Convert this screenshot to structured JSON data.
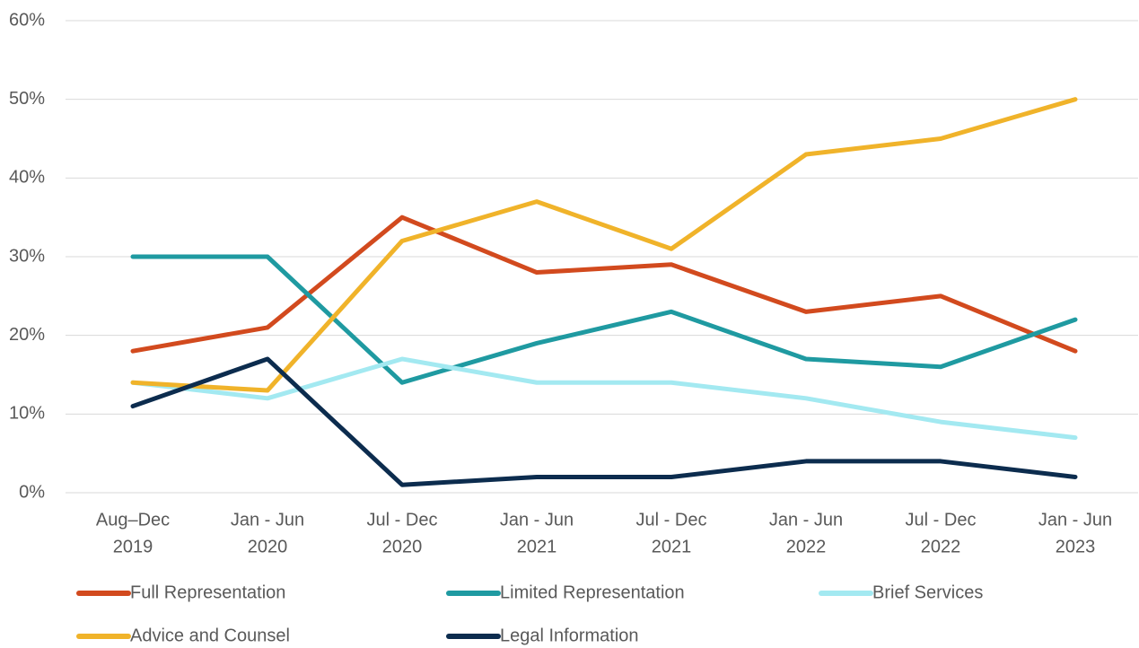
{
  "chart_data": {
    "type": "line",
    "categories": [
      [
        "Aug–Dec",
        "2019"
      ],
      [
        "Jan - Jun",
        "2020"
      ],
      [
        "Jul - Dec",
        "2020"
      ],
      [
        "Jan - Jun",
        "2021"
      ],
      [
        "Jul - Dec",
        "2021"
      ],
      [
        "Jan - Jun",
        "2022"
      ],
      [
        "Jul - Dec",
        "2022"
      ],
      [
        "Jan - Jun",
        "2023"
      ]
    ],
    "series": [
      {
        "name": "Full Representation",
        "color": "#d24a1e",
        "values": [
          18,
          21,
          35,
          28,
          29,
          23,
          25,
          18
        ]
      },
      {
        "name": "Limited Representation",
        "color": "#1f9aa1",
        "values": [
          30,
          30,
          14,
          19,
          23,
          17,
          16,
          22
        ]
      },
      {
        "name": "Brief Services",
        "color": "#a3e9f1",
        "values": [
          14,
          12,
          17,
          14,
          14,
          12,
          9,
          7
        ]
      },
      {
        "name": "Advice and Counsel",
        "color": "#f0b32a",
        "values": [
          14,
          13,
          32,
          37,
          31,
          43,
          45,
          50
        ]
      },
      {
        "name": "Legal Information",
        "color": "#0c2c4e",
        "values": [
          11,
          17,
          1,
          2,
          2,
          4,
          4,
          2
        ]
      }
    ],
    "ylim": [
      0,
      60
    ],
    "yticks": [
      {
        "value": 0,
        "label": "0%"
      },
      {
        "value": 10,
        "label": "10%"
      },
      {
        "value": 20,
        "label": "20%"
      },
      {
        "value": 30,
        "label": "30%"
      },
      {
        "value": 40,
        "label": "40%"
      },
      {
        "value": 50,
        "label": "50%"
      },
      {
        "value": 60,
        "label": "60%"
      }
    ],
    "grid": true
  }
}
